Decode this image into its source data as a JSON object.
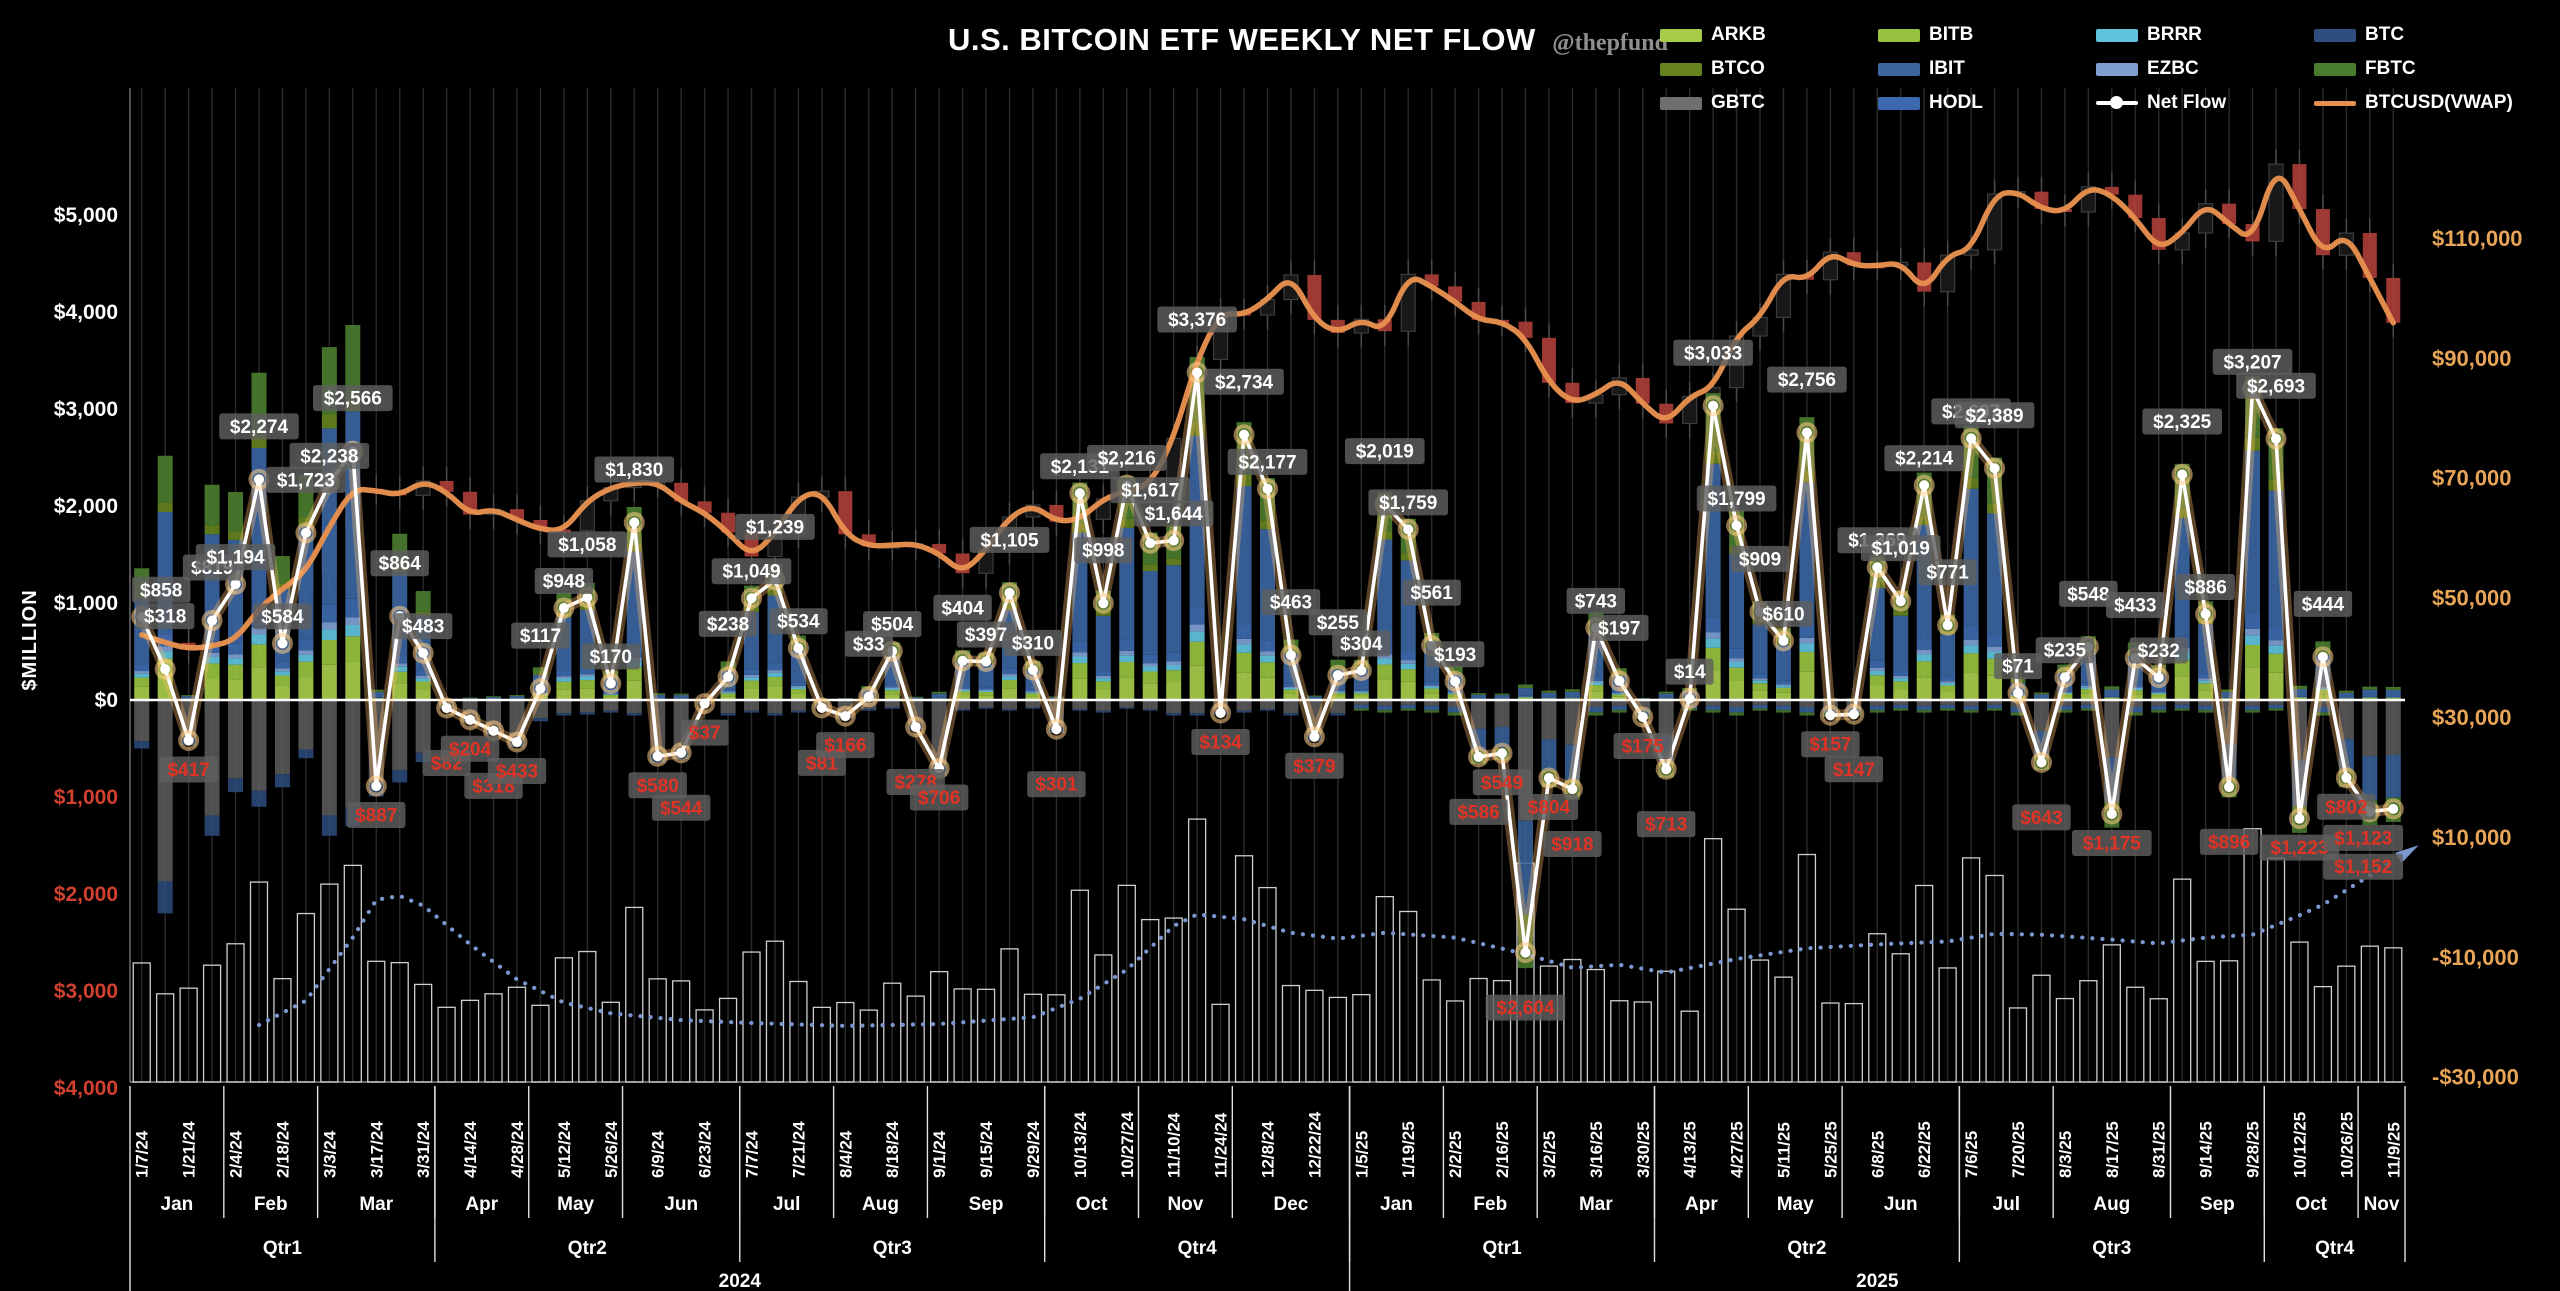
{
  "title": {
    "main": "U.S. BITCOIN ETF WEEKLY NET FLOW",
    "handle": "@thepfund"
  },
  "legend": {
    "items": [
      {
        "label": "ARKB",
        "color": "#a7cc4a",
        "type": "swatch"
      },
      {
        "label": "BITB",
        "color": "#97c23f",
        "type": "swatch"
      },
      {
        "label": "BRRR",
        "color": "#5fc3dc",
        "type": "swatch"
      },
      {
        "label": "BTC",
        "color": "#2d4e7f",
        "type": "swatch"
      },
      {
        "label": "BTCO",
        "color": "#66831f",
        "type": "swatch"
      },
      {
        "label": "IBIT",
        "color": "#3a659f",
        "type": "swatch"
      },
      {
        "label": "EZBC",
        "color": "#7f9fd2",
        "type": "swatch"
      },
      {
        "label": "FBTC",
        "color": "#4a7c2e",
        "type": "swatch"
      },
      {
        "label": "GBTC",
        "color": "#6f6f6f",
        "type": "swatch"
      },
      {
        "label": "HODL",
        "color": "#3c69ad",
        "type": "swatch"
      },
      {
        "label": "Net Flow",
        "color": "#ffffff",
        "type": "line-dot"
      },
      {
        "label": "BTCUSD(VWAP)",
        "color": "#e68f4e",
        "type": "line"
      }
    ]
  },
  "axes": {
    "left": {
      "title": "$MILLION",
      "ticks": [
        {
          "label": "$5,000",
          "value": 5000
        },
        {
          "label": "$4,000",
          "value": 4000
        },
        {
          "label": "$3,000",
          "value": 3000
        },
        {
          "label": "$2,000",
          "value": 2000
        },
        {
          "label": "$1,000",
          "value": 1000
        },
        {
          "label": "$0",
          "value": 0
        },
        {
          "label": "$1,000",
          "value": -1000
        },
        {
          "label": "$2,000",
          "value": -2000
        },
        {
          "label": "$3,000",
          "value": -3000
        },
        {
          "label": "$4,000",
          "value": -4000
        }
      ]
    },
    "right": {
      "ticks": [
        {
          "label": "$110,000",
          "value": 110
        },
        {
          "label": "$90,000",
          "value": 90
        },
        {
          "label": "$70,000",
          "value": 70
        },
        {
          "label": "$50,000",
          "value": 50
        },
        {
          "label": "$30,000",
          "value": 30
        },
        {
          "label": "$10,000",
          "value": 10
        },
        {
          "label": "-$10,000",
          "value": -10
        },
        {
          "label": "-$30,000",
          "value": -30
        }
      ]
    }
  },
  "chart_data": {
    "type": "composite",
    "series_types": {
      "net_flow": "line",
      "etf_stack": "bar",
      "btcusd_vwap": "line",
      "volume": "bar",
      "dotted_trend": "line"
    },
    "weeks": 97,
    "x_tick_labels": [
      "1/7/24",
      "1/21/24",
      "2/4/24",
      "2/18/24",
      "3/3/24",
      "3/17/24",
      "3/31/24",
      "4/14/24",
      "4/28/24",
      "5/12/24",
      "5/26/24",
      "6/9/24",
      "6/23/24",
      "7/7/24",
      "7/21/24",
      "8/4/24",
      "8/18/24",
      "9/1/24",
      "9/15/24",
      "9/29/24",
      "10/13/24",
      "10/27/24",
      "11/10/24",
      "11/24/24",
      "12/8/24",
      "12/22/24",
      "1/5/25",
      "1/19/25",
      "2/2/25",
      "2/16/25",
      "3/2/25",
      "3/16/25",
      "3/30/25",
      "4/13/25",
      "4/27/25",
      "5/11/25",
      "5/25/25",
      "6/8/25",
      "6/22/25",
      "7/6/25",
      "7/20/25",
      "8/3/25",
      "8/17/25",
      "8/31/25",
      "9/14/25",
      "9/28/25",
      "10/12/25",
      "10/26/25",
      "11/9/25"
    ],
    "months": [
      {
        "label": "Jan",
        "weeks": 4
      },
      {
        "label": "Feb",
        "weeks": 4
      },
      {
        "label": "Mar",
        "weeks": 5
      },
      {
        "label": "Apr",
        "weeks": 4
      },
      {
        "label": "May",
        "weeks": 4
      },
      {
        "label": "Jun",
        "weeks": 5
      },
      {
        "label": "Jul",
        "weeks": 4
      },
      {
        "label": "Aug",
        "weeks": 4
      },
      {
        "label": "Sep",
        "weeks": 5
      },
      {
        "label": "Oct",
        "weeks": 4
      },
      {
        "label": "Nov",
        "weeks": 4
      },
      {
        "label": "Dec",
        "weeks": 5
      },
      {
        "label": "Jan",
        "weeks": 4
      },
      {
        "label": "Feb",
        "weeks": 4
      },
      {
        "label": "Mar",
        "weeks": 5
      },
      {
        "label": "Apr",
        "weeks": 4
      },
      {
        "label": "May",
        "weeks": 4
      },
      {
        "label": "Jun",
        "weeks": 5
      },
      {
        "label": "Jul",
        "weeks": 4
      },
      {
        "label": "Aug",
        "weeks": 5
      },
      {
        "label": "Sep",
        "weeks": 4
      },
      {
        "label": "Oct",
        "weeks": 4
      },
      {
        "label": "Nov",
        "weeks": 2
      }
    ],
    "quarters": [
      {
        "label": "Qtr1",
        "weeks": 13
      },
      {
        "label": "Qtr2",
        "weeks": 13
      },
      {
        "label": "Qtr3",
        "weeks": 13
      },
      {
        "label": "Qtr4",
        "weeks": 13
      },
      {
        "label": "Qtr1",
        "weeks": 13
      },
      {
        "label": "Qtr2",
        "weeks": 13
      },
      {
        "label": "Qtr3",
        "weeks": 13
      },
      {
        "label": "Qtr4",
        "weeks": 6
      }
    ],
    "years": [
      {
        "label": "2024",
        "weeks": 52
      },
      {
        "label": "2025",
        "weeks": 45
      }
    ],
    "net_flow_musd": [
      858,
      318,
      -417,
      819,
      1194,
      2274,
      584,
      1723,
      2238,
      2566,
      -887,
      864,
      483,
      -82,
      -204,
      -318,
      -433,
      117,
      948,
      1058,
      170,
      1830,
      -580,
      -544,
      -37,
      238,
      1049,
      1239,
      534,
      -81,
      -166,
      33,
      504,
      -278,
      -706,
      404,
      397,
      1105,
      310,
      -301,
      2131,
      998,
      2216,
      1617,
      1644,
      3376,
      -134,
      2734,
      2177,
      463,
      -379,
      255,
      304,
      2019,
      1759,
      561,
      193,
      -586,
      -549,
      -2604,
      -804,
      -918,
      743,
      197,
      -175,
      -713,
      14,
      3033,
      1799,
      909,
      610,
      2756,
      -157,
      -147,
      1369,
      1019,
      2214,
      771,
      2697,
      2389,
      71,
      -643,
      235,
      548,
      -1175,
      433,
      232,
      2325,
      886,
      -896,
      3207,
      2693,
      -1223,
      444,
      -802,
      -1152,
      -1123
    ],
    "gbtc_outflow_est_musd": [
      -500,
      -2200,
      -2250,
      -1400,
      -950,
      -1100,
      -900,
      -600,
      -1400,
      -1300,
      -1750,
      -850,
      -640,
      -300,
      -350,
      -320,
      -280,
      -220,
      -160,
      -150,
      -130,
      -160,
      -310,
      -260,
      -130,
      -160,
      -130,
      -160,
      -130,
      -210,
      -160,
      -110,
      -90,
      -160,
      -210,
      -110,
      -90,
      -110,
      -90,
      -160,
      -110,
      -130,
      -90,
      -110,
      -160,
      -160,
      -310,
      -130,
      -110,
      -160,
      -260,
      -160,
      -110,
      -130,
      -110,
      -130,
      -160,
      -420,
      -370,
      -450,
      -420,
      -460,
      -160,
      -130,
      -310,
      -360,
      -110,
      -130,
      -160,
      -110,
      -130,
      -160,
      -310,
      -290,
      -130,
      -110,
      -130,
      -110,
      -130,
      -110,
      -160,
      -360,
      -130,
      -110,
      -520,
      -160,
      -130,
      -110,
      -130,
      -420,
      -130,
      -110,
      -520,
      -160,
      -420,
      -520,
      -470
    ],
    "btcusd_vwap_kusd": [
      43.9,
      42.6,
      41.6,
      42.0,
      43.1,
      48.3,
      51.6,
      54.5,
      62.0,
      68.3,
      68.0,
      67.2,
      69.6,
      67.8,
      64.0,
      64.9,
      63.1,
      61.5,
      61.3,
      66.3,
      68.5,
      69.3,
      69.3,
      66.2,
      64.3,
      61.0,
      57.0,
      60.8,
      66.9,
      67.9,
      60.7,
      58.7,
      58.9,
      59.1,
      57.5,
      54.2,
      58.1,
      63.6,
      65.6,
      62.8,
      63.2,
      66.6,
      68.0,
      69.0,
      76.7,
      89.9,
      97.7,
      97.3,
      99.9,
      104.0,
      96.5,
      94.3,
      96.6,
      94.6,
      104.1,
      102.1,
      99.5,
      96.5,
      96.2,
      93.5,
      86.0,
      82.6,
      84.0,
      86.8,
      82.5,
      79.2,
      83.7,
      85.2,
      93.8,
      96.9,
      104.1,
      103.2,
      107.8,
      105.6,
      105.5,
      106.1,
      101.2,
      107.3,
      108.2,
      117.5,
      117.9,
      115.0,
      114.5,
      118.7,
      117.4,
      113.5,
      108.2,
      111.0,
      115.9,
      112.5,
      109.6,
      122.5,
      115.0,
      107.3,
      111.0,
      103.5,
      96.0
    ],
    "dotted_trend_musd": [
      [
        5,
        -3350
      ],
      [
        7,
        -3100
      ],
      [
        9,
        -2450
      ],
      [
        10,
        -2060
      ],
      [
        11,
        -2020
      ],
      [
        12,
        -2120
      ],
      [
        14,
        -2520
      ],
      [
        16,
        -2880
      ],
      [
        18,
        -3120
      ],
      [
        20,
        -3230
      ],
      [
        23,
        -3300
      ],
      [
        26,
        -3330
      ],
      [
        30,
        -3360
      ],
      [
        34,
        -3340
      ],
      [
        38,
        -3270
      ],
      [
        40,
        -3080
      ],
      [
        42,
        -2780
      ],
      [
        44,
        -2330
      ],
      [
        45,
        -2210
      ],
      [
        47,
        -2260
      ],
      [
        49,
        -2400
      ],
      [
        51,
        -2460
      ],
      [
        53,
        -2400
      ],
      [
        56,
        -2450
      ],
      [
        59,
        -2620
      ],
      [
        61,
        -2760
      ],
      [
        63,
        -2730
      ],
      [
        65,
        -2810
      ],
      [
        68,
        -2670
      ],
      [
        71,
        -2560
      ],
      [
        74,
        -2520
      ],
      [
        77,
        -2490
      ],
      [
        79,
        -2410
      ],
      [
        81,
        -2420
      ],
      [
        84,
        -2470
      ],
      [
        86,
        -2510
      ],
      [
        88,
        -2450
      ],
      [
        90,
        -2420
      ],
      [
        91,
        -2320
      ],
      [
        92,
        -2220
      ],
      [
        93,
        -2110
      ],
      [
        94,
        -1960
      ],
      [
        95,
        -1810
      ],
      [
        96,
        -1660
      ]
    ],
    "stack_shares_pos": [
      [
        "ARKB",
        0.1
      ],
      [
        "BITB",
        0.07
      ],
      [
        "BRRR",
        0.03
      ],
      [
        "EZBC",
        0.02
      ],
      [
        "HODL",
        0.05
      ],
      [
        "IBIT",
        0.5
      ],
      [
        "BTCO",
        0.04
      ],
      [
        "FBTC",
        0.19
      ]
    ],
    "stack_shares_neg_2024": [
      [
        "GBTC",
        0.85
      ],
      [
        "BTC",
        0.15
      ]
    ],
    "stack_shares_neg_2025": [
      [
        "GBTC",
        0.45
      ],
      [
        "IBIT",
        0.35
      ],
      [
        "FBTC",
        0.2
      ]
    ],
    "left_axis_range_musd": [
      -4000,
      5000
    ],
    "right_axis_range_usd": [
      -30000,
      110000
    ],
    "grid": "weekly-vertical"
  },
  "colors": {
    "background": "#000000",
    "net_flow_line": "#ffffff",
    "net_flow_glow": "#f0b36a",
    "vwap_line": "#e68f4e",
    "label_chip_bg": "#5f5f5f",
    "label_positive": "#ffffff",
    "label_negative": "#e03325",
    "axis_left_positive": "#ffffff",
    "axis_left_negative": "#d2402f",
    "axis_right": "#e8a558",
    "gridline": "#2b2b2b",
    "zero_line": "#ffffff",
    "candle_down": "#a63b36",
    "candle_up": "#181818",
    "candle_stroke": "#3c3c3c",
    "volume_outline": "#cfcfcf",
    "dotted_trend": "#7b97cf",
    "separator": "#e0e0e0"
  }
}
